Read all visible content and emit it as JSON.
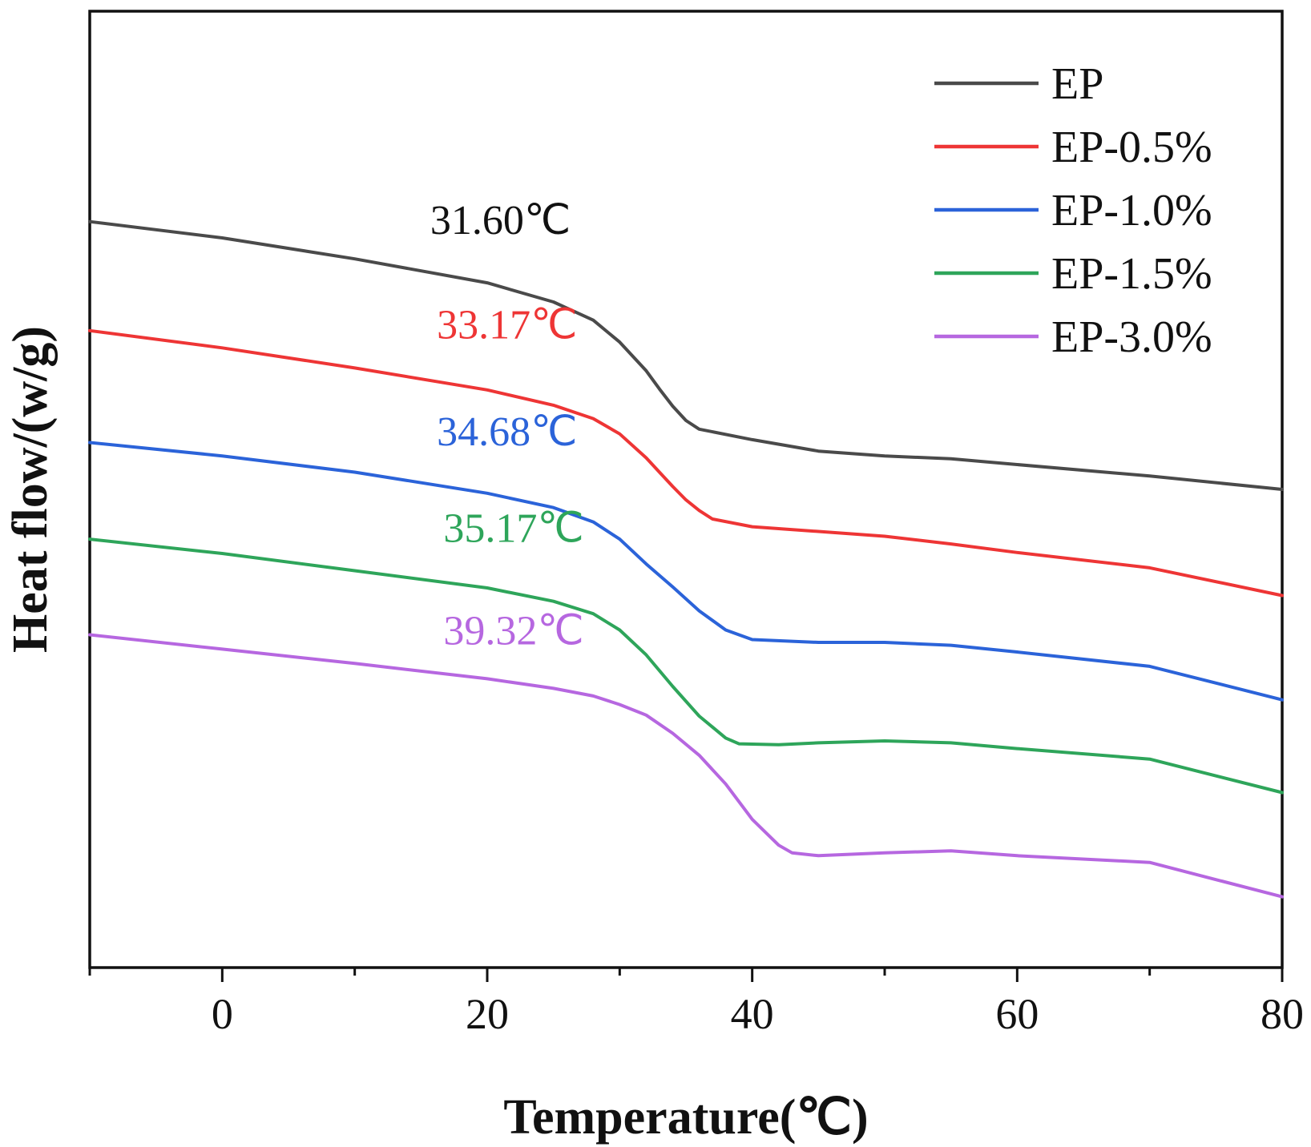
{
  "chart_data": {
    "type": "line",
    "title": "",
    "xlabel": "Temperature(℃)",
    "ylabel": "Heat flow/(w/g)",
    "xlim": [
      -10,
      80
    ],
    "ylim": [
      0,
      1
    ],
    "x_ticks": [
      0,
      20,
      40,
      60,
      80
    ],
    "x_tick_labels": [
      "0",
      "20",
      "40",
      "60",
      "80"
    ],
    "y_tick_labels_shown": false,
    "grid": false,
    "legend_position": "top-right",
    "series": [
      {
        "name": "EP",
        "color": "#4a4a4a",
        "points": [
          [
            -10,
            0.78
          ],
          [
            0,
            0.763
          ],
          [
            10,
            0.741
          ],
          [
            20,
            0.716
          ],
          [
            25,
            0.696
          ],
          [
            28,
            0.677
          ],
          [
            30,
            0.654
          ],
          [
            32,
            0.624
          ],
          [
            33,
            0.605
          ],
          [
            34,
            0.587
          ],
          [
            35,
            0.572
          ],
          [
            36,
            0.563
          ],
          [
            40,
            0.552
          ],
          [
            45,
            0.54
          ],
          [
            50,
            0.535
          ],
          [
            55,
            0.532
          ],
          [
            60,
            0.526
          ],
          [
            70,
            0.514
          ],
          [
            80,
            0.5
          ]
        ],
        "annotation": {
          "text": "31.60℃",
          "x": 21,
          "y": 0.767,
          "color": "#111111"
        }
      },
      {
        "name": "EP-0.5%",
        "color": "#ee3535",
        "points": [
          [
            -10,
            0.666
          ],
          [
            0,
            0.648
          ],
          [
            10,
            0.627
          ],
          [
            20,
            0.604
          ],
          [
            25,
            0.588
          ],
          [
            28,
            0.574
          ],
          [
            30,
            0.558
          ],
          [
            32,
            0.533
          ],
          [
            33,
            0.518
          ],
          [
            34,
            0.503
          ],
          [
            35,
            0.489
          ],
          [
            36,
            0.478
          ],
          [
            37,
            0.469
          ],
          [
            40,
            0.461
          ],
          [
            45,
            0.456
          ],
          [
            50,
            0.451
          ],
          [
            55,
            0.443
          ],
          [
            60,
            0.434
          ],
          [
            70,
            0.418
          ],
          [
            80,
            0.389
          ]
        ],
        "annotation": {
          "text": "33.17℃",
          "x": 21.5,
          "y": 0.658,
          "color": "#ee3535"
        }
      },
      {
        "name": "EP-1.0%",
        "color": "#2b63d9",
        "points": [
          [
            -10,
            0.549
          ],
          [
            0,
            0.535
          ],
          [
            10,
            0.518
          ],
          [
            20,
            0.496
          ],
          [
            25,
            0.481
          ],
          [
            28,
            0.466
          ],
          [
            30,
            0.448
          ],
          [
            32,
            0.422
          ],
          [
            34,
            0.398
          ],
          [
            36,
            0.373
          ],
          [
            38,
            0.353
          ],
          [
            40,
            0.343
          ],
          [
            45,
            0.34
          ],
          [
            50,
            0.34
          ],
          [
            55,
            0.337
          ],
          [
            60,
            0.33
          ],
          [
            70,
            0.315
          ],
          [
            80,
            0.28
          ]
        ],
        "annotation": {
          "text": "34.68℃",
          "x": 21.5,
          "y": 0.546,
          "color": "#2b63d9"
        }
      },
      {
        "name": "EP-1.5%",
        "color": "#2ea55a",
        "points": [
          [
            -10,
            0.448
          ],
          [
            0,
            0.433
          ],
          [
            10,
            0.415
          ],
          [
            20,
            0.397
          ],
          [
            25,
            0.383
          ],
          [
            28,
            0.37
          ],
          [
            30,
            0.353
          ],
          [
            32,
            0.327
          ],
          [
            34,
            0.294
          ],
          [
            36,
            0.263
          ],
          [
            38,
            0.24
          ],
          [
            39,
            0.234
          ],
          [
            42,
            0.233
          ],
          [
            45,
            0.235
          ],
          [
            50,
            0.237
          ],
          [
            55,
            0.235
          ],
          [
            60,
            0.229
          ],
          [
            70,
            0.218
          ],
          [
            80,
            0.183
          ]
        ],
        "annotation": {
          "text": "35.17℃",
          "x": 22,
          "y": 0.445,
          "color": "#2ea55a"
        }
      },
      {
        "name": "EP-3.0%",
        "color": "#b667e0",
        "points": [
          [
            -10,
            0.348
          ],
          [
            0,
            0.333
          ],
          [
            10,
            0.318
          ],
          [
            20,
            0.302
          ],
          [
            25,
            0.292
          ],
          [
            28,
            0.284
          ],
          [
            30,
            0.275
          ],
          [
            32,
            0.264
          ],
          [
            34,
            0.245
          ],
          [
            36,
            0.222
          ],
          [
            38,
            0.192
          ],
          [
            40,
            0.155
          ],
          [
            42,
            0.128
          ],
          [
            43,
            0.12
          ],
          [
            45,
            0.117
          ],
          [
            50,
            0.12
          ],
          [
            55,
            0.122
          ],
          [
            60,
            0.117
          ],
          [
            70,
            0.11
          ],
          [
            80,
            0.074
          ]
        ],
        "annotation": {
          "text": "39.32℃",
          "x": 22,
          "y": 0.338,
          "color": "#b667e0"
        }
      }
    ]
  }
}
